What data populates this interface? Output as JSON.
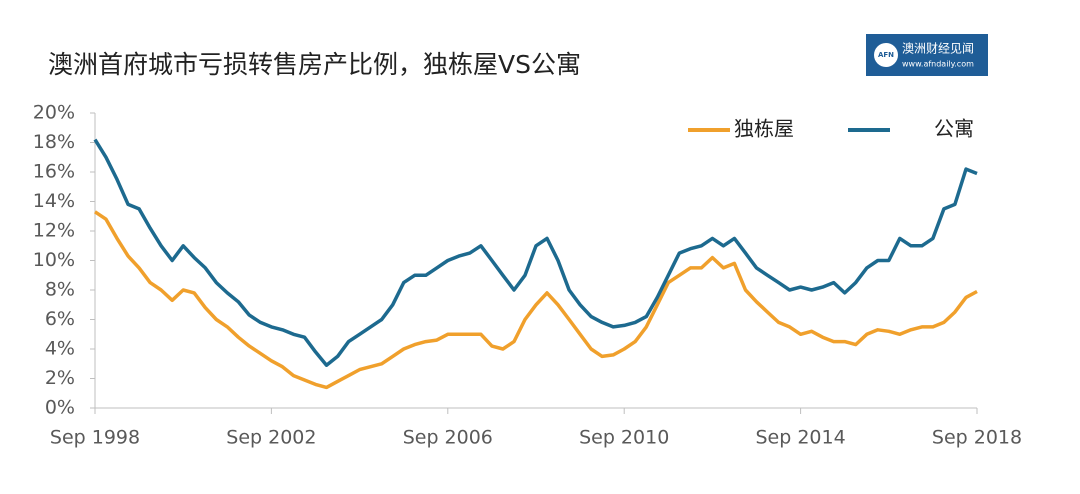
{
  "chart_data": {
    "type": "line",
    "title": "澳洲首府城市亏损转售房产比例，独栋屋VS公寓",
    "logo": {
      "name": "澳洲财经见闻",
      "url": "www.afndaily.com",
      "mark": "AFN"
    },
    "x": [
      1998.75,
      1999,
      1999.25,
      1999.5,
      1999.75,
      2000,
      2000.25,
      2000.5,
      2000.75,
      2001,
      2001.25,
      2001.5,
      2001.75,
      2002,
      2002.25,
      2002.5,
      2002.75,
      2003,
      2003.25,
      2003.5,
      2003.75,
      2004,
      2004.25,
      2004.5,
      2004.75,
      2005,
      2005.25,
      2005.5,
      2005.75,
      2006,
      2006.25,
      2006.5,
      2006.75,
      2007,
      2007.25,
      2007.5,
      2007.75,
      2008,
      2008.25,
      2008.5,
      2008.75,
      2009,
      2009.25,
      2009.5,
      2009.75,
      2010,
      2010.25,
      2010.5,
      2010.75,
      2011,
      2011.25,
      2011.5,
      2011.75,
      2012,
      2012.25,
      2012.5,
      2012.75,
      2013,
      2013.25,
      2013.5,
      2013.75,
      2014,
      2014.25,
      2014.5,
      2014.75,
      2015,
      2015.25,
      2015.5,
      2015.75,
      2016,
      2016.25,
      2016.5,
      2016.75,
      2017,
      2017.25,
      2017.5,
      2017.75,
      2018,
      2018.25,
      2018.5,
      2018.75
    ],
    "series": [
      {
        "name": "独栋屋",
        "color": "#f0a02c",
        "values": [
          13.3,
          12.8,
          11.5,
          10.3,
          9.5,
          8.5,
          8.0,
          7.3,
          8.0,
          7.8,
          6.8,
          6.0,
          5.5,
          4.8,
          4.2,
          3.7,
          3.2,
          2.8,
          2.2,
          1.9,
          1.6,
          1.4,
          1.8,
          2.2,
          2.6,
          2.8,
          3.0,
          3.5,
          4.0,
          4.3,
          4.5,
          4.6,
          5.0,
          5.0,
          5.0,
          5.0,
          4.2,
          4.0,
          4.5,
          6.0,
          7.0,
          7.8,
          7.0,
          6.0,
          5.0,
          4.0,
          3.5,
          3.6,
          4.0,
          4.5,
          5.5,
          7.0,
          8.5,
          9.0,
          9.5,
          9.5,
          10.2,
          9.5,
          9.8,
          8.0,
          7.2,
          6.5,
          5.8,
          5.5,
          5.0,
          5.2,
          4.8,
          4.5,
          4.5,
          4.3,
          5.0,
          5.3,
          5.2,
          5.0,
          5.3,
          5.5,
          5.5,
          5.8,
          6.5,
          7.5,
          7.9
        ]
      },
      {
        "name": "公寓",
        "color": "#1d6a8f",
        "values": [
          18.2,
          17.0,
          15.5,
          13.8,
          13.5,
          12.2,
          11.0,
          10.0,
          11.0,
          10.2,
          9.5,
          8.5,
          7.8,
          7.2,
          6.3,
          5.8,
          5.5,
          5.3,
          5.0,
          4.8,
          3.8,
          2.9,
          3.5,
          4.5,
          5.0,
          5.5,
          6.0,
          7.0,
          8.5,
          9.0,
          9.0,
          9.5,
          10.0,
          10.3,
          10.5,
          11.0,
          10.0,
          9.0,
          8.0,
          9.0,
          11.0,
          11.5,
          10.0,
          8.0,
          7.0,
          6.2,
          5.8,
          5.5,
          5.6,
          5.8,
          6.2,
          7.5,
          9.0,
          10.5,
          10.8,
          11.0,
          11.5,
          11.0,
          11.5,
          10.5,
          9.5,
          9.0,
          8.5,
          8.0,
          8.2,
          8.0,
          8.2,
          8.5,
          7.8,
          8.5,
          9.5,
          10.0,
          10.0,
          11.5,
          11.0,
          11.0,
          11.5,
          13.5,
          13.8,
          16.2,
          15.9
        ]
      }
    ],
    "xlim": [
      1998.75,
      2018.75
    ],
    "xticks": [
      {
        "value": 1998.75,
        "label": "Sep 1998"
      },
      {
        "value": 2002.75,
        "label": "Sep 2002"
      },
      {
        "value": 2006.75,
        "label": "Sep 2006"
      },
      {
        "value": 2010.75,
        "label": "Sep 2010"
      },
      {
        "value": 2014.75,
        "label": "Sep 2014"
      },
      {
        "value": 2018.75,
        "label": "Sep 2018"
      }
    ],
    "ylim": [
      0,
      20
    ],
    "yticks": [
      {
        "value": 0,
        "label": "0%"
      },
      {
        "value": 2,
        "label": "2%"
      },
      {
        "value": 4,
        "label": "4%"
      },
      {
        "value": 6,
        "label": "6%"
      },
      {
        "value": 8,
        "label": "8%"
      },
      {
        "value": 10,
        "label": "10%"
      },
      {
        "value": 12,
        "label": "12%"
      },
      {
        "value": 14,
        "label": "14%"
      },
      {
        "value": 16,
        "label": "16%"
      },
      {
        "value": 18,
        "label": "18%"
      },
      {
        "value": 20,
        "label": "20%"
      }
    ],
    "legend": "upper right"
  }
}
